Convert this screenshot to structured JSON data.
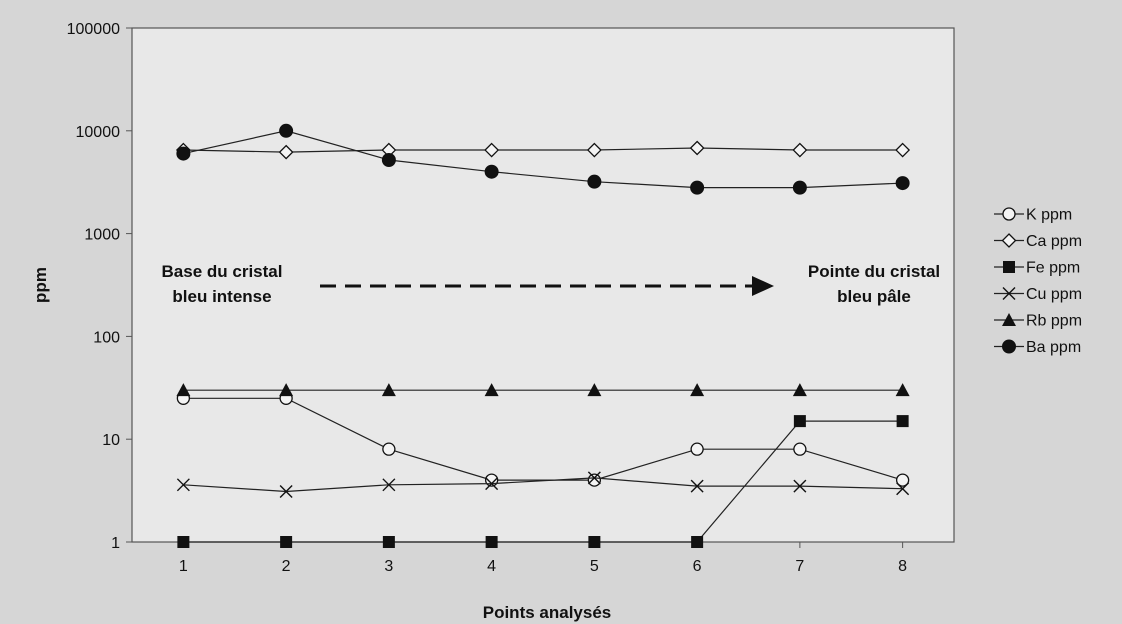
{
  "chart_data": {
    "type": "line",
    "ylabel": "ppm",
    "xlabel": "Points analysés",
    "x": [
      1,
      2,
      3,
      4,
      5,
      6,
      7,
      8
    ],
    "y_scale": "log",
    "ylim": [
      1,
      100000
    ],
    "y_ticks": [
      "1",
      "10",
      "100",
      "1000",
      "10000",
      "100000"
    ],
    "grid": false,
    "legend_position": "right",
    "series": [
      {
        "name": "K ppm",
        "marker": "circle-open",
        "values": [
          25,
          25,
          8,
          4,
          4,
          8,
          8,
          4
        ]
      },
      {
        "name": "Ca ppm",
        "marker": "diamond-open",
        "values": [
          6500,
          6200,
          6500,
          6500,
          6500,
          6800,
          6500,
          6500
        ]
      },
      {
        "name": "Fe ppm",
        "marker": "square-filled",
        "values": [
          1,
          1,
          1,
          1,
          1,
          1,
          15,
          15
        ]
      },
      {
        "name": "Cu ppm",
        "marker": "x",
        "values": [
          3.6,
          3.1,
          3.6,
          3.7,
          4.2,
          3.5,
          3.5,
          3.3
        ]
      },
      {
        "name": "Rb ppm",
        "marker": "triangle-filled",
        "values": [
          30,
          30,
          30,
          30,
          30,
          30,
          30,
          30
        ]
      },
      {
        "name": "Ba ppm",
        "marker": "circle-filled",
        "values": [
          6000,
          10000,
          5200,
          4000,
          3200,
          2800,
          2800,
          3100
        ]
      }
    ],
    "annotations": {
      "left_line1": "Base du cristal",
      "left_line2": "bleu intense",
      "right_line1": "Pointe du cristal",
      "right_line2": "bleu pâle"
    }
  }
}
